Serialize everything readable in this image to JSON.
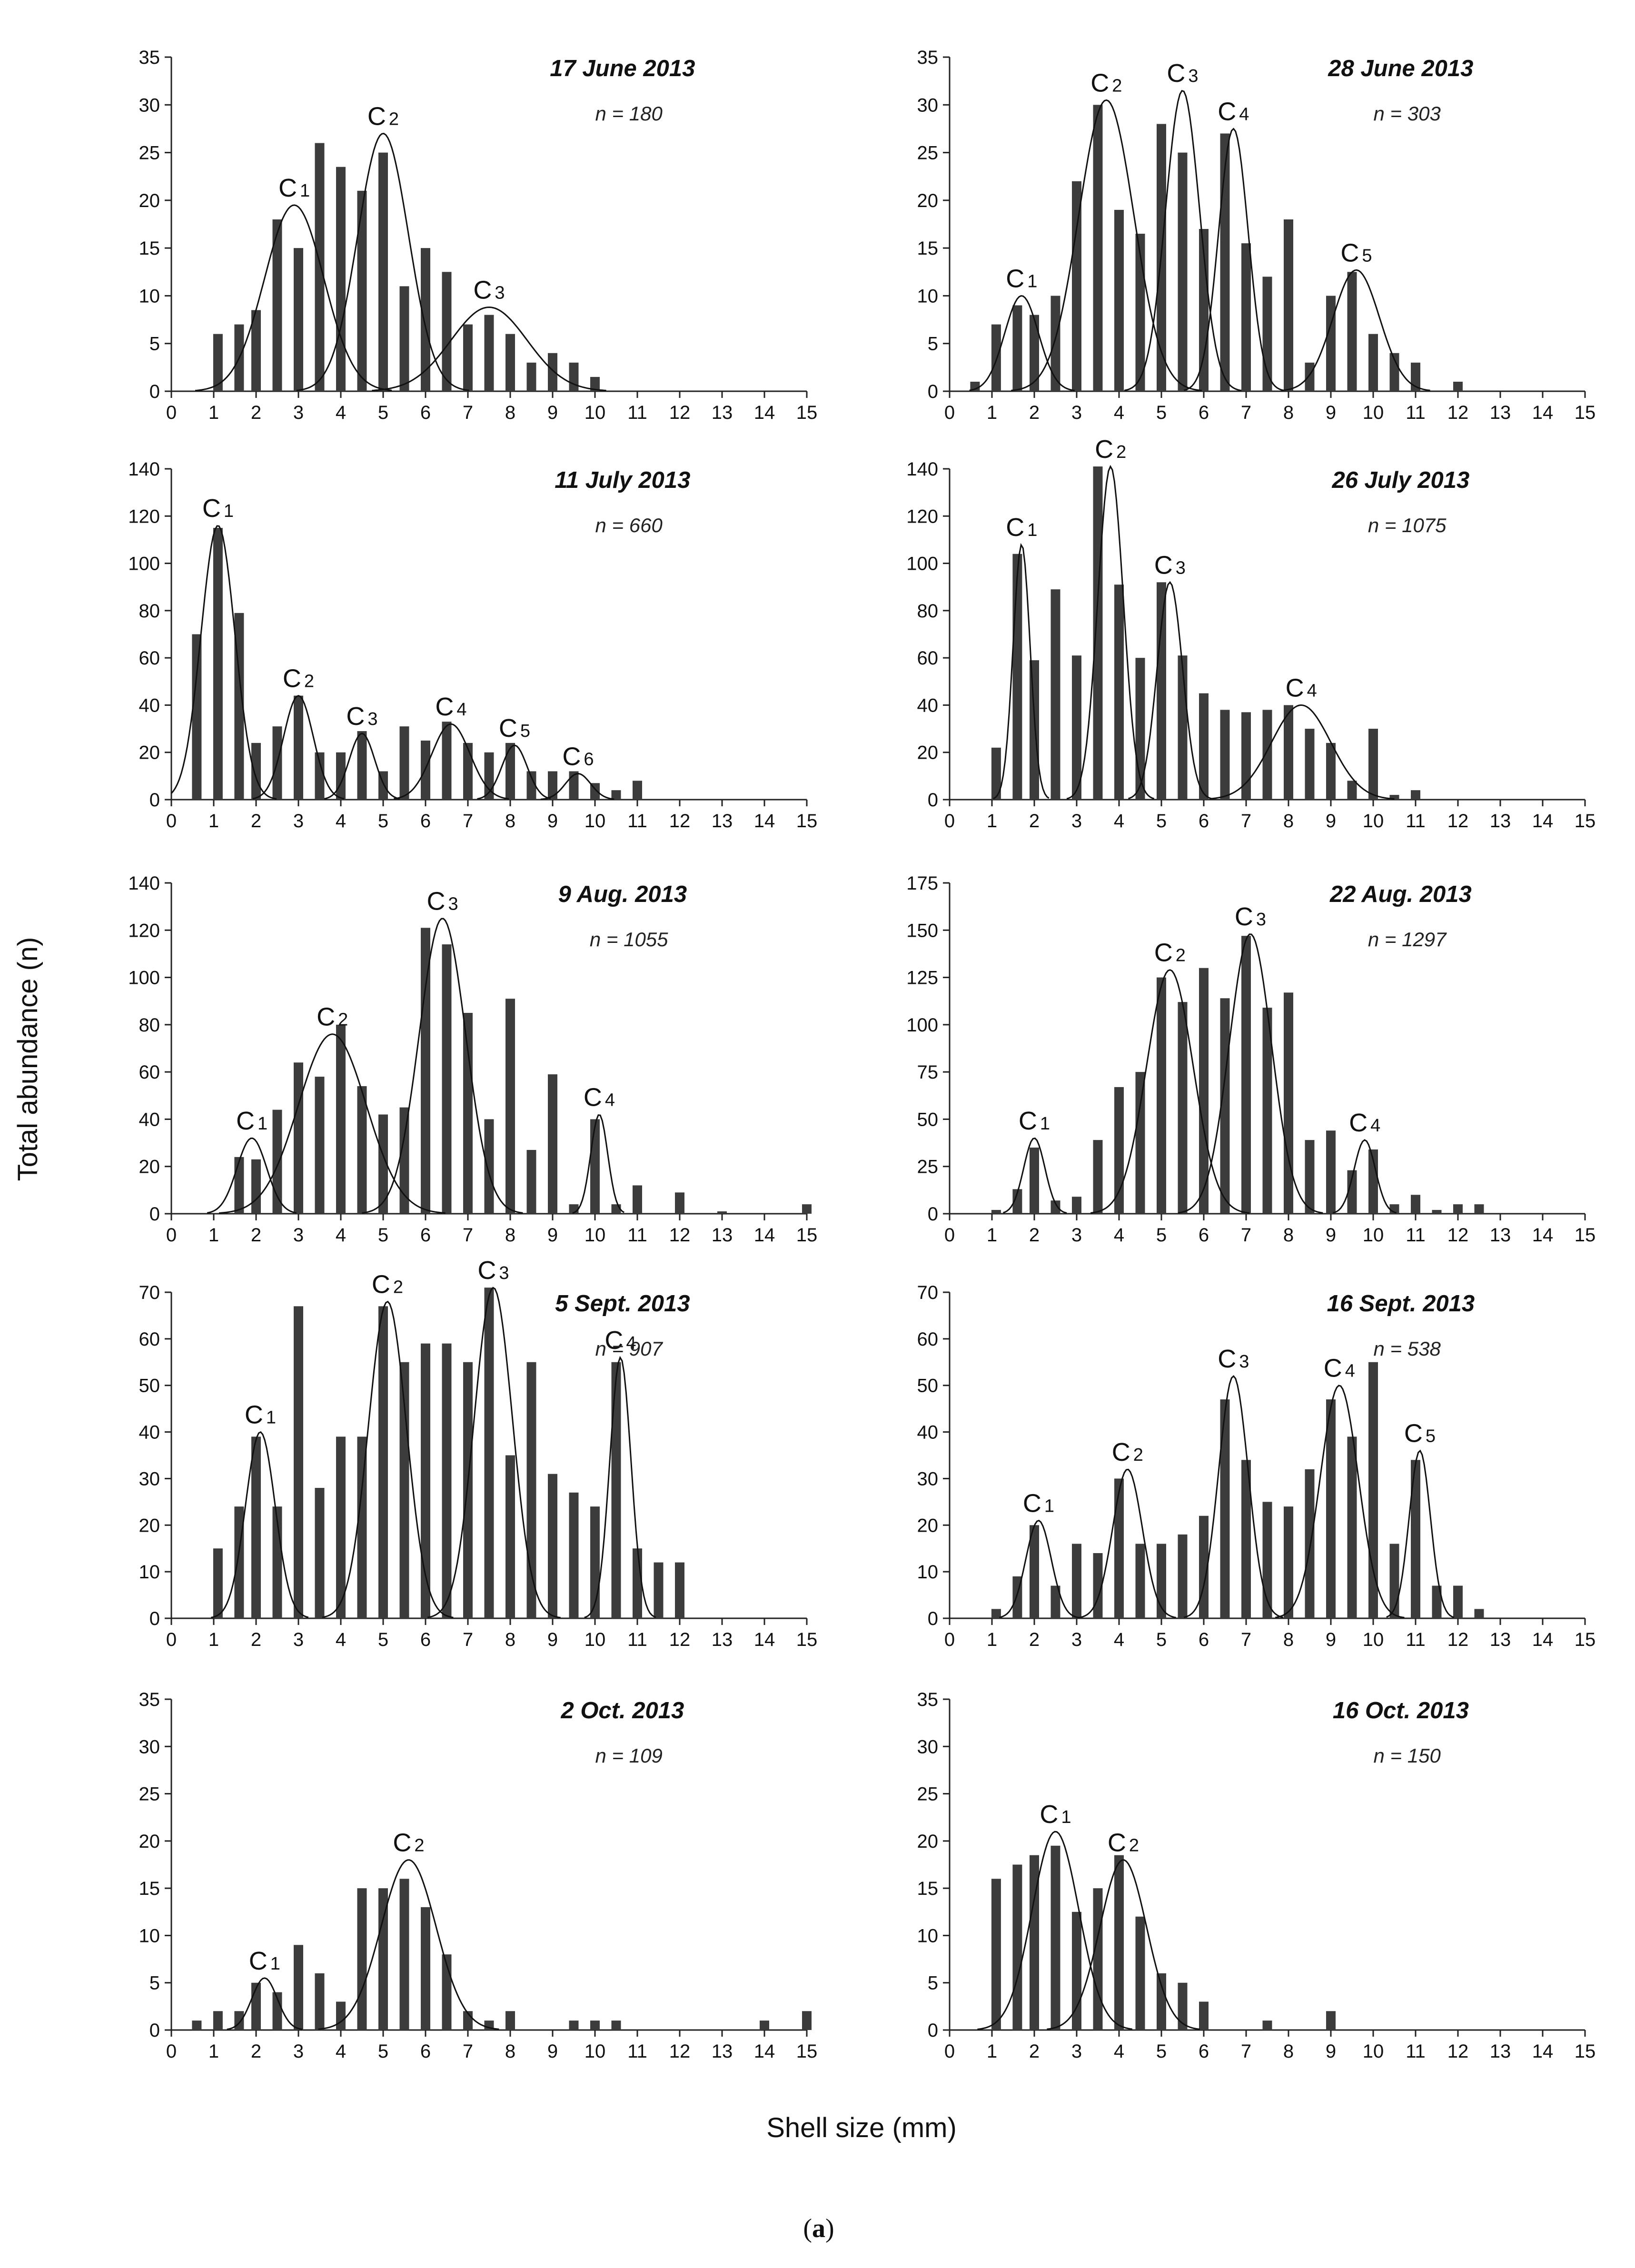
{
  "figure": {
    "ylabel": "Total abundance (n)",
    "xlabel": "Shell size (mm)",
    "panel_label_open": "(",
    "panel_label_letter": "a",
    "panel_label_close": ")"
  },
  "chart_data": [
    {
      "type": "bar",
      "title": "17 June 2013",
      "n_label": "n = 180",
      "xlim": [
        0,
        15
      ],
      "ylim": [
        0,
        35
      ],
      "yticks": [
        0,
        5,
        10,
        15,
        20,
        25,
        30,
        35
      ],
      "xticks": [
        0,
        1,
        2,
        3,
        4,
        5,
        6,
        7,
        8,
        9,
        10,
        11,
        12,
        13,
        14,
        15
      ],
      "x": [
        1.1,
        1.6,
        2.0,
        2.5,
        3.0,
        3.5,
        4.0,
        4.5,
        5.0,
        5.5,
        6.0,
        6.5,
        7.0,
        7.5,
        8.0,
        8.5,
        9.0,
        9.5,
        10.0
      ],
      "values": [
        6,
        7,
        8.5,
        18,
        15,
        26,
        23.5,
        21,
        25,
        11,
        15,
        12.5,
        7,
        8,
        6,
        3,
        4,
        3,
        1.5
      ],
      "cohorts": [
        {
          "label": "C",
          "index": "1",
          "mean": 2.9,
          "sd": 0.7,
          "peak": 19.5
        },
        {
          "label": "C",
          "index": "2",
          "mean": 5.0,
          "sd": 0.6,
          "peak": 27
        },
        {
          "label": "C",
          "index": "3",
          "mean": 7.5,
          "sd": 0.9,
          "peak": 8.8
        }
      ]
    },
    {
      "type": "bar",
      "title": "28 June 2013",
      "n_label": "n = 303",
      "xlim": [
        0,
        15
      ],
      "ylim": [
        0,
        35
      ],
      "yticks": [
        0,
        5,
        10,
        15,
        20,
        25,
        30,
        35
      ],
      "xticks": [
        0,
        1,
        2,
        3,
        4,
        5,
        6,
        7,
        8,
        9,
        10,
        11,
        12,
        13,
        14,
        15
      ],
      "x": [
        0.6,
        1.1,
        1.6,
        2.0,
        2.5,
        3.0,
        3.5,
        4.0,
        4.5,
        5.0,
        5.5,
        6.0,
        6.5,
        7.0,
        7.5,
        8.0,
        8.5,
        9.0,
        9.5,
        10.0,
        10.5,
        11.0,
        12.0
      ],
      "values": [
        1,
        7,
        9,
        8,
        10,
        22,
        30,
        19,
        16.5,
        28,
        25,
        17,
        27,
        15.5,
        12,
        18,
        3,
        10,
        12.5,
        6,
        4,
        3,
        1
      ],
      "cohorts": [
        {
          "label": "C",
          "index": "1",
          "mean": 1.7,
          "sd": 0.4,
          "peak": 10
        },
        {
          "label": "C",
          "index": "2",
          "mean": 3.7,
          "sd": 0.65,
          "peak": 30.5
        },
        {
          "label": "C",
          "index": "3",
          "mean": 5.5,
          "sd": 0.4,
          "peak": 31.5
        },
        {
          "label": "C",
          "index": "4",
          "mean": 6.7,
          "sd": 0.35,
          "peak": 27.5
        },
        {
          "label": "C",
          "index": "5",
          "mean": 9.6,
          "sd": 0.55,
          "peak": 12.7
        }
      ]
    },
    {
      "type": "bar",
      "title": "11 July 2013",
      "n_label": "n = 660",
      "xlim": [
        0,
        15
      ],
      "ylim": [
        0,
        140
      ],
      "yticks": [
        0,
        20,
        40,
        60,
        80,
        100,
        120,
        140
      ],
      "xticks": [
        0,
        1,
        2,
        3,
        4,
        5,
        6,
        7,
        8,
        9,
        10,
        11,
        12,
        13,
        14,
        15
      ],
      "x": [
        0.6,
        1.1,
        1.6,
        2.0,
        2.5,
        3.0,
        3.5,
        4.0,
        4.5,
        5.0,
        5.5,
        6.0,
        6.5,
        7.0,
        7.5,
        8.0,
        8.5,
        9.0,
        9.5,
        10.0,
        10.5,
        11.0
      ],
      "values": [
        70,
        115,
        79,
        24,
        31,
        44,
        20,
        20,
        29,
        12,
        31,
        25,
        33,
        24,
        20,
        24,
        12,
        12,
        12,
        7,
        4,
        8
      ],
      "cohorts": [
        {
          "label": "C",
          "index": "1",
          "mean": 1.1,
          "sd": 0.4,
          "peak": 116
        },
        {
          "label": "C",
          "index": "2",
          "mean": 3.0,
          "sd": 0.35,
          "peak": 44
        },
        {
          "label": "C",
          "index": "3",
          "mean": 4.5,
          "sd": 0.3,
          "peak": 28
        },
        {
          "label": "C",
          "index": "4",
          "mean": 6.6,
          "sd": 0.45,
          "peak": 32
        },
        {
          "label": "C",
          "index": "5",
          "mean": 8.1,
          "sd": 0.3,
          "peak": 23
        },
        {
          "label": "C",
          "index": "6",
          "mean": 9.6,
          "sd": 0.3,
          "peak": 11
        }
      ]
    },
    {
      "type": "bar",
      "title": "26 July 2013",
      "n_label": "n = 1075",
      "xlim": [
        0,
        15
      ],
      "ylim": [
        0,
        140
      ],
      "yticks": [
        0,
        20,
        40,
        60,
        80,
        100,
        120,
        140
      ],
      "xticks": [
        0,
        1,
        2,
        3,
        4,
        5,
        6,
        7,
        8,
        9,
        10,
        11,
        12,
        13,
        14,
        15
      ],
      "x": [
        1.1,
        1.6,
        2.0,
        2.5,
        3.0,
        3.5,
        4.0,
        4.5,
        5.0,
        5.5,
        6.0,
        6.5,
        7.0,
        7.5,
        8.0,
        8.5,
        9.0,
        9.5,
        10.0,
        10.5,
        11.0
      ],
      "values": [
        22,
        104,
        59,
        89,
        61,
        141,
        91,
        60,
        92,
        61,
        45,
        38,
        37,
        38,
        40,
        30,
        24,
        8,
        30,
        2,
        4
      ],
      "cohorts": [
        {
          "label": "C",
          "index": "1",
          "mean": 1.7,
          "sd": 0.2,
          "peak": 108
        },
        {
          "label": "C",
          "index": "2",
          "mean": 3.8,
          "sd": 0.3,
          "peak": 141
        },
        {
          "label": "C",
          "index": "3",
          "mean": 5.2,
          "sd": 0.3,
          "peak": 92
        },
        {
          "label": "C",
          "index": "4",
          "mean": 8.3,
          "sd": 0.7,
          "peak": 40
        }
      ]
    },
    {
      "type": "bar",
      "title": "9 Aug. 2013",
      "n_label": "n = 1055",
      "xlim": [
        0,
        15
      ],
      "ylim": [
        0,
        140
      ],
      "yticks": [
        0,
        20,
        40,
        60,
        80,
        100,
        120,
        140
      ],
      "xticks": [
        0,
        1,
        2,
        3,
        4,
        5,
        6,
        7,
        8,
        9,
        10,
        11,
        12,
        13,
        14,
        15
      ],
      "x": [
        1.6,
        2.0,
        2.5,
        3.0,
        3.5,
        4.0,
        4.5,
        5.0,
        5.5,
        6.0,
        6.5,
        7.0,
        7.5,
        8.0,
        8.5,
        9.0,
        9.5,
        10.0,
        10.5,
        11.0,
        12.0,
        13.0,
        15.0
      ],
      "values": [
        24,
        23,
        44,
        64,
        58,
        80,
        54,
        42,
        45,
        121,
        114,
        85,
        40,
        91,
        27,
        59,
        4,
        40,
        4,
        12,
        9,
        1,
        4
      ],
      "cohorts": [
        {
          "label": "C",
          "index": "1",
          "mean": 1.9,
          "sd": 0.35,
          "peak": 32
        },
        {
          "label": "C",
          "index": "2",
          "mean": 3.8,
          "sd": 0.8,
          "peak": 76
        },
        {
          "label": "C",
          "index": "3",
          "mean": 6.4,
          "sd": 0.55,
          "peak": 125
        },
        {
          "label": "C",
          "index": "4",
          "mean": 10.1,
          "sd": 0.2,
          "peak": 42
        }
      ]
    },
    {
      "type": "bar",
      "title": "22 Aug. 2013",
      "n_label": "n = 1297",
      "xlim": [
        0,
        15
      ],
      "ylim": [
        0,
        175
      ],
      "yticks": [
        0,
        25,
        50,
        75,
        100,
        125,
        150,
        175
      ],
      "xticks": [
        0,
        1,
        2,
        3,
        4,
        5,
        6,
        7,
        8,
        9,
        10,
        11,
        12,
        13,
        14,
        15
      ],
      "x": [
        1.1,
        1.6,
        2.0,
        2.5,
        3.0,
        3.5,
        4.0,
        4.5,
        5.0,
        5.5,
        6.0,
        6.5,
        7.0,
        7.5,
        8.0,
        8.5,
        9.0,
        9.5,
        10.0,
        10.5,
        11.0,
        11.5,
        12.0,
        12.5
      ],
      "values": [
        2,
        13,
        35,
        7,
        9,
        39,
        67,
        75,
        125,
        112,
        130,
        114,
        147,
        109,
        117,
        39,
        44,
        23,
        34,
        5,
        10,
        2,
        5,
        5
      ],
      "cohorts": [
        {
          "label": "C",
          "index": "1",
          "mean": 2.0,
          "sd": 0.25,
          "peak": 40
        },
        {
          "label": "C",
          "index": "2",
          "mean": 5.2,
          "sd": 0.55,
          "peak": 129
        },
        {
          "label": "C",
          "index": "3",
          "mean": 7.1,
          "sd": 0.5,
          "peak": 148
        },
        {
          "label": "C",
          "index": "4",
          "mean": 9.8,
          "sd": 0.25,
          "peak": 39
        }
      ]
    },
    {
      "type": "bar",
      "title": "5 Sept. 2013",
      "n_label": "n = 907",
      "xlim": [
        0,
        15
      ],
      "ylim": [
        0,
        70
      ],
      "yticks": [
        0,
        10,
        20,
        30,
        40,
        50,
        60,
        70
      ],
      "xticks": [
        0,
        1,
        2,
        3,
        4,
        5,
        6,
        7,
        8,
        9,
        10,
        11,
        12,
        13,
        14,
        15
      ],
      "x": [
        1.1,
        1.6,
        2.0,
        2.5,
        3.0,
        3.5,
        4.0,
        4.5,
        5.0,
        5.5,
        6.0,
        6.5,
        7.0,
        7.5,
        8.0,
        8.5,
        9.0,
        9.5,
        10.0,
        10.5,
        11.0,
        11.5,
        12.0
      ],
      "values": [
        15,
        24,
        39,
        24,
        67,
        28,
        39,
        39,
        67,
        55,
        59,
        59,
        55,
        71,
        35,
        55,
        31,
        27,
        24,
        55,
        15,
        12,
        12
      ],
      "cohorts": [
        {
          "label": "C",
          "index": "1",
          "mean": 2.1,
          "sd": 0.35,
          "peak": 40
        },
        {
          "label": "C",
          "index": "2",
          "mean": 5.1,
          "sd": 0.45,
          "peak": 68
        },
        {
          "label": "C",
          "index": "3",
          "mean": 7.6,
          "sd": 0.45,
          "peak": 71
        },
        {
          "label": "C",
          "index": "4",
          "mean": 10.6,
          "sd": 0.25,
          "peak": 56
        }
      ]
    },
    {
      "type": "bar",
      "title": "16 Sept. 2013",
      "n_label": "n = 538",
      "xlim": [
        0,
        15
      ],
      "ylim": [
        0,
        70
      ],
      "yticks": [
        0,
        10,
        20,
        30,
        40,
        50,
        60,
        70
      ],
      "xticks": [
        0,
        1,
        2,
        3,
        4,
        5,
        6,
        7,
        8,
        9,
        10,
        11,
        12,
        13,
        14,
        15
      ],
      "x": [
        1.1,
        1.6,
        2.0,
        2.5,
        3.0,
        3.5,
        4.0,
        4.5,
        5.0,
        5.5,
        6.0,
        6.5,
        7.0,
        7.5,
        8.0,
        8.5,
        9.0,
        9.5,
        10.0,
        10.5,
        11.0,
        11.5,
        12.0,
        12.5
      ],
      "values": [
        2,
        9,
        20,
        7,
        16,
        14,
        30,
        16,
        16,
        18,
        22,
        47,
        34,
        25,
        24,
        32,
        47,
        39,
        55,
        16,
        34,
        7,
        7,
        2
      ],
      "cohorts": [
        {
          "label": "C",
          "index": "1",
          "mean": 2.1,
          "sd": 0.3,
          "peak": 21
        },
        {
          "label": "C",
          "index": "2",
          "mean": 4.2,
          "sd": 0.35,
          "peak": 32
        },
        {
          "label": "C",
          "index": "3",
          "mean": 6.7,
          "sd": 0.35,
          "peak": 52
        },
        {
          "label": "C",
          "index": "4",
          "mean": 9.2,
          "sd": 0.45,
          "peak": 50
        },
        {
          "label": "C",
          "index": "5",
          "mean": 11.1,
          "sd": 0.25,
          "peak": 36
        }
      ]
    },
    {
      "type": "bar",
      "title": "2 Oct. 2013",
      "n_label": "n = 109",
      "xlim": [
        0,
        15
      ],
      "ylim": [
        0,
        35
      ],
      "yticks": [
        0,
        5,
        10,
        15,
        20,
        25,
        30,
        35
      ],
      "xticks": [
        0,
        1,
        2,
        3,
        4,
        5,
        6,
        7,
        8,
        9,
        10,
        11,
        12,
        13,
        14,
        15
      ],
      "x": [
        0.6,
        1.1,
        1.6,
        2.0,
        2.5,
        3.0,
        3.5,
        4.0,
        4.5,
        5.0,
        5.5,
        6.0,
        6.5,
        7.0,
        7.5,
        8.0,
        9.5,
        10.0,
        10.5,
        14.0,
        15.0
      ],
      "values": [
        1,
        2,
        2,
        5,
        4,
        9,
        6,
        3,
        15,
        15,
        16,
        13,
        8,
        2,
        1,
        2,
        1,
        1,
        1,
        1,
        2
      ],
      "cohorts": [
        {
          "label": "C",
          "index": "1",
          "mean": 2.2,
          "sd": 0.3,
          "peak": 5.5
        },
        {
          "label": "C",
          "index": "2",
          "mean": 5.6,
          "sd": 0.65,
          "peak": 18
        }
      ]
    },
    {
      "type": "bar",
      "title": "16 Oct. 2013",
      "n_label": "n = 150",
      "xlim": [
        0,
        15
      ],
      "ylim": [
        0,
        35
      ],
      "yticks": [
        0,
        5,
        10,
        15,
        20,
        25,
        30,
        35
      ],
      "xticks": [
        0,
        1,
        2,
        3,
        4,
        5,
        6,
        7,
        8,
        9,
        10,
        11,
        12,
        13,
        14,
        15
      ],
      "x": [
        1.1,
        1.6,
        2.0,
        2.5,
        3.0,
        3.5,
        4.0,
        4.5,
        5.0,
        5.5,
        6.0,
        7.5,
        9.0
      ],
      "values": [
        16,
        17.5,
        18.5,
        19.5,
        12.5,
        15,
        18.5,
        12,
        6,
        5,
        3,
        1,
        2
      ],
      "cohorts": [
        {
          "label": "C",
          "index": "1",
          "mean": 2.5,
          "sd": 0.55,
          "peak": 21
        },
        {
          "label": "C",
          "index": "2",
          "mean": 4.1,
          "sd": 0.55,
          "peak": 18
        }
      ]
    }
  ]
}
